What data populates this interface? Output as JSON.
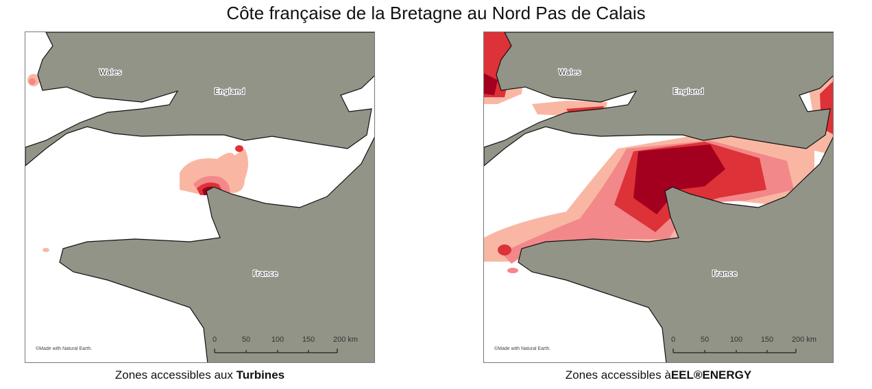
{
  "title": "Côte française de la Bretagne au Nord Pas de Calais",
  "colors": {
    "land": "#929488",
    "sea": "#ffffff",
    "heat_light": "#f9b7a3",
    "heat_mid": "#f2888a",
    "heat_red": "#dd3238",
    "heat_dark": "#a3001f"
  },
  "maps": [
    {
      "labels": {
        "wales": "Wales",
        "england": "England",
        "france": "France"
      },
      "attribution": "©Made with Natural Earth.",
      "scale": [
        "0",
        "50",
        "100",
        "150",
        "200 km"
      ],
      "caption_prefix": "Zones accessibles aux ",
      "caption_bold": "Turbines"
    },
    {
      "labels": {
        "wales": "Wales",
        "england": "England",
        "france": "France"
      },
      "attribution": "©Made with Natural Earth.",
      "scale": [
        "0",
        "50",
        "100",
        "150",
        "200 km"
      ],
      "caption_prefix": "Zones accessibles à",
      "caption_bold": "EEL®ENERGY"
    }
  ]
}
